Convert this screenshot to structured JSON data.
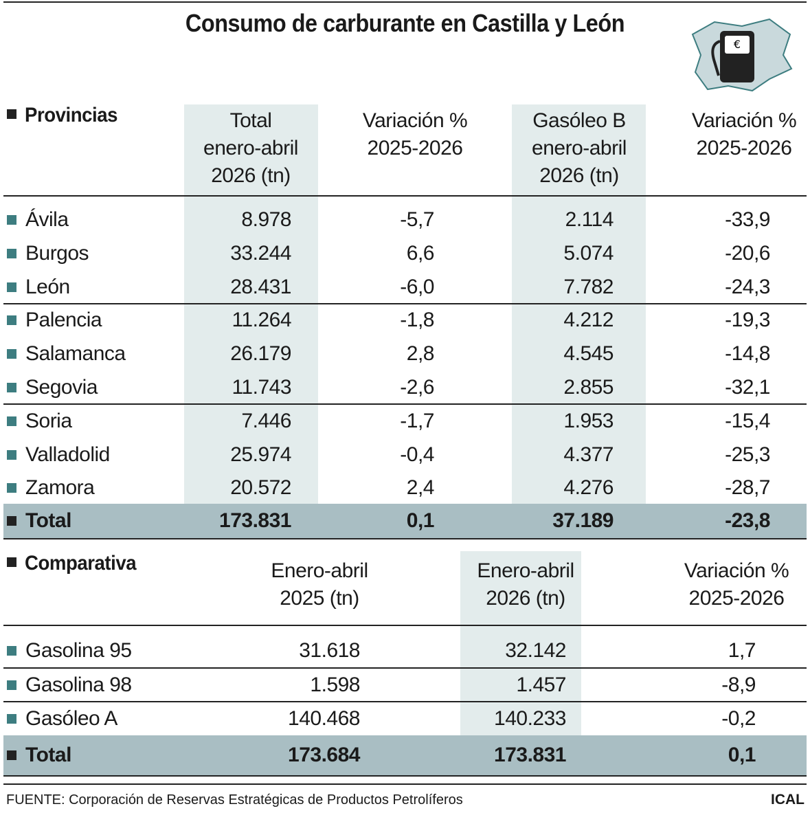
{
  "title": "Consumo de carburante en Castilla y León",
  "provincias": {
    "heading": "Provincias",
    "columns": [
      [
        "Total",
        "enero-abril",
        "2026 (tn)"
      ],
      [
        "Variación %",
        "2025-2026"
      ],
      [
        "Gasóleo B",
        "enero-abril",
        "2026 (tn)"
      ],
      [
        "Variación %",
        "2025-2026"
      ]
    ],
    "rows": [
      [
        "Ávila",
        "8.978",
        "-5,7",
        "2.114",
        "-33,9"
      ],
      [
        "Burgos",
        "33.244",
        "6,6",
        "5.074",
        "-20,6"
      ],
      [
        "León",
        "28.431",
        "-6,0",
        "7.782",
        "-24,3"
      ],
      [
        "Palencia",
        "11.264",
        "-1,8",
        "4.212",
        "-19,3"
      ],
      [
        "Salamanca",
        "26.179",
        "2,8",
        "4.545",
        "-14,8"
      ],
      [
        "Segovia",
        "11.743",
        "-2,6",
        "2.855",
        "-32,1"
      ],
      [
        "Soria",
        "7.446",
        "-1,7",
        "1.953",
        "-15,4"
      ],
      [
        "Valladolid",
        "25.974",
        "-0,4",
        "4.377",
        "-25,3"
      ],
      [
        "Zamora",
        "20.572",
        "2,4",
        "4.276",
        "-28,7"
      ]
    ],
    "total": [
      "Total",
      "173.831",
      "0,1",
      "37.189",
      "-23,8"
    ]
  },
  "comparativa": {
    "heading": "Comparativa",
    "columns": [
      [
        "Enero-abril",
        "2025 (tn)"
      ],
      [
        "Enero-abril",
        "2026 (tn)"
      ],
      [
        "Variación %",
        "2025-2026"
      ]
    ],
    "rows": [
      [
        "Gasolina 95",
        "31.618",
        "32.142",
        "1,7"
      ],
      [
        "Gasolina 98",
        "1.598",
        "1.457",
        "-8,9"
      ],
      [
        "Gasóleo A",
        "140.468",
        "140.233",
        "-0,2"
      ]
    ],
    "total": [
      "Total",
      "173.684",
      "173.831",
      "0,1"
    ]
  },
  "source": "FUENTE: Corporación de Reservas Estratégicas de Productos Petrolíferos",
  "brand": "ICAL"
}
